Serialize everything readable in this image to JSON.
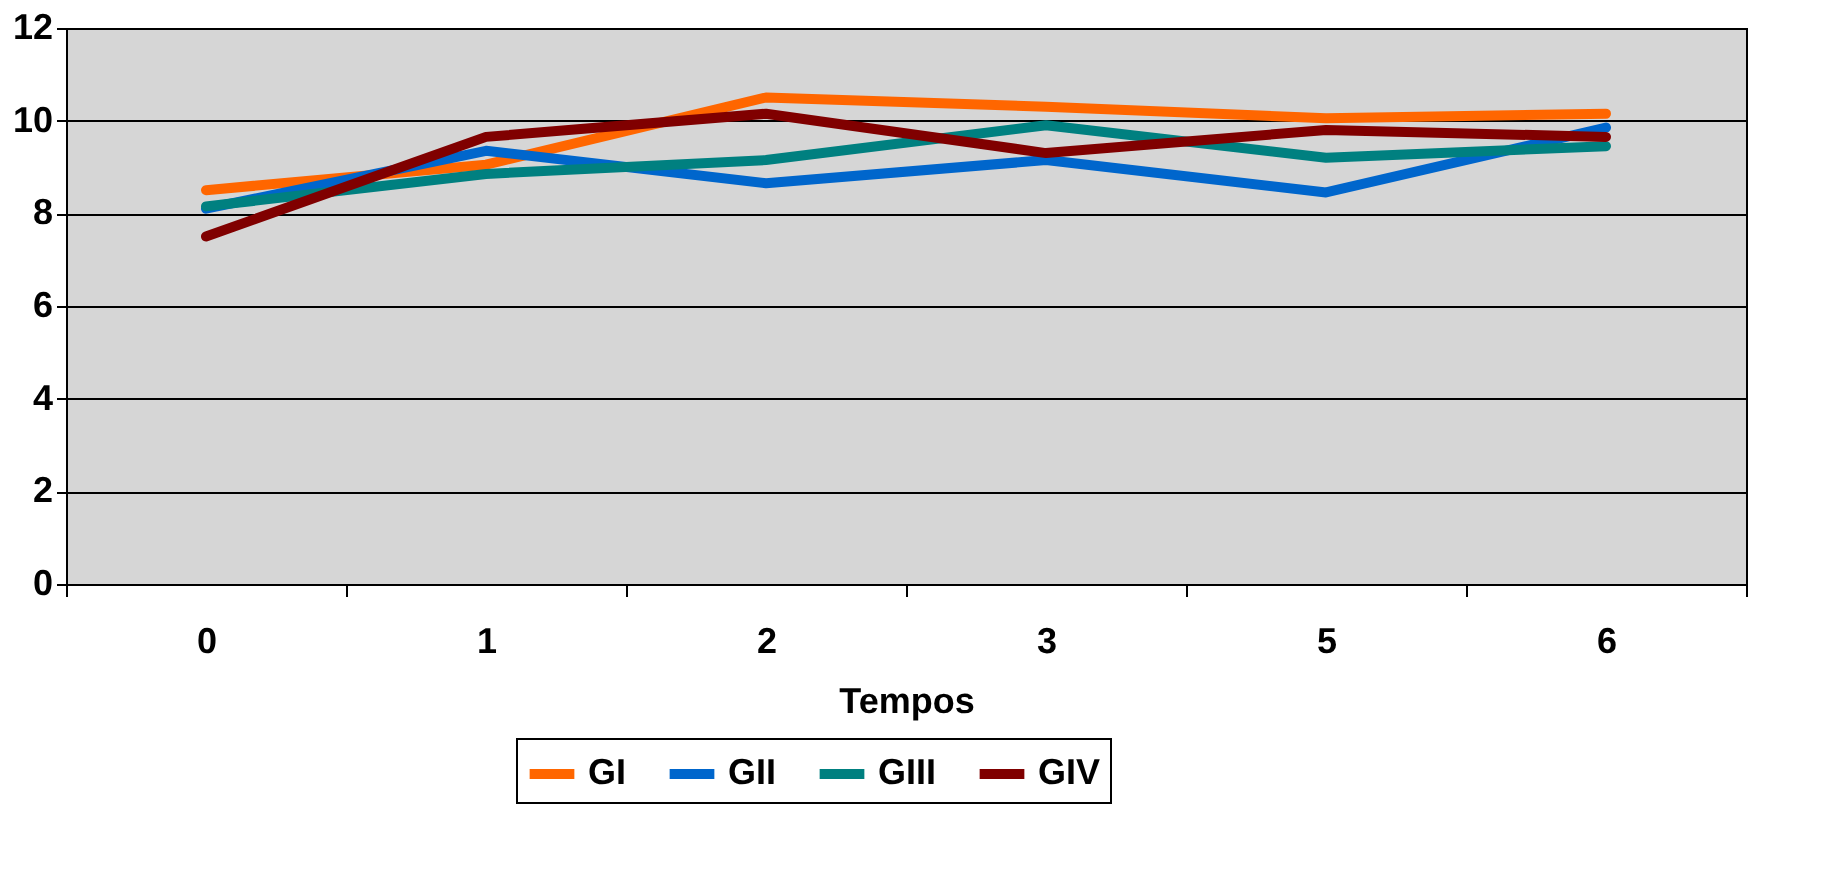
{
  "chart_data": {
    "type": "line",
    "xlabel": "Tempos",
    "categories": [
      "0",
      "1",
      "2",
      "3",
      "5",
      "6"
    ],
    "series": [
      {
        "name": "GI",
        "color": "#ff6600",
        "values": [
          8.5,
          9.05,
          10.5,
          10.3,
          10.05,
          10.15
        ]
      },
      {
        "name": "GII",
        "color": "#0066cc",
        "values": [
          8.1,
          9.35,
          8.65,
          9.15,
          8.45,
          9.85
        ]
      },
      {
        "name": "GIII",
        "color": "#008080",
        "values": [
          8.15,
          8.85,
          9.15,
          9.9,
          9.2,
          9.45
        ]
      },
      {
        "name": "GIV",
        "color": "#800000",
        "values": [
          7.5,
          9.65,
          10.15,
          9.3,
          9.8,
          9.65
        ]
      }
    ],
    "ylim": [
      0,
      12
    ],
    "yticks": [
      0,
      2,
      4,
      6,
      8,
      10,
      12
    ],
    "grid": "y",
    "legend": "bottom",
    "marker": "none",
    "line_style": "solid"
  }
}
